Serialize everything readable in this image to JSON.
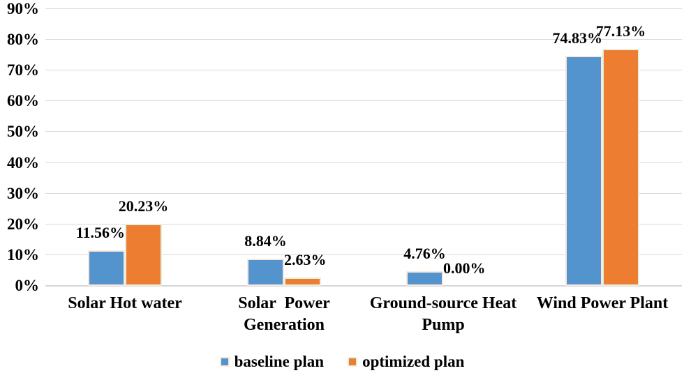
{
  "chart_data": {
    "type": "bar",
    "title": "",
    "xlabel": "",
    "ylabel": "",
    "categories": [
      "Solar Hot water",
      "Solar  Power Generation",
      "Ground-source Heat Pump",
      "Wind Power Plant"
    ],
    "category_lines": [
      [
        "Solar Hot water"
      ],
      [
        "Solar  Power",
        "Generation"
      ],
      [
        "Ground-source Heat",
        "Pump"
      ],
      [
        "Wind Power Plant"
      ]
    ],
    "series": [
      {
        "name": "baseline plan",
        "color": "#5494ce",
        "edge_color": "#fbe8dc",
        "values": [
          11.56,
          8.84,
          4.76,
          74.83
        ],
        "labels": [
          "11.56%",
          "8.84%",
          "4.76%",
          "74.83%"
        ]
      },
      {
        "name": "optimized plan",
        "color": "#ed7d31",
        "edge_color": "#e5f1de",
        "values": [
          20.23,
          2.63,
          0.0,
          77.13
        ],
        "labels": [
          "20.23%",
          "2.63%",
          "0.00%",
          "77.13%"
        ]
      }
    ],
    "y_axis": {
      "min": 0,
      "max": 90,
      "step": 10,
      "ticks": [
        "0%",
        "10%",
        "20%",
        "30%",
        "40%",
        "50%",
        "60%",
        "70%",
        "80%",
        "90%"
      ]
    },
    "ylim": [
      0,
      90
    ],
    "grid": true,
    "legend_position": "bottom"
  },
  "legend": {
    "items": [
      {
        "label": "baseline plan",
        "color": "#5494ce",
        "edge_color": "#fbe8dc"
      },
      {
        "label": "optimized plan",
        "color": "#ed7d31",
        "edge_color": "#e5f1de"
      }
    ]
  },
  "colors": {
    "gridline": "#d9d9d9",
    "axis_line": "#d6d6d6",
    "text": "#000000",
    "background": "#ffffff"
  }
}
